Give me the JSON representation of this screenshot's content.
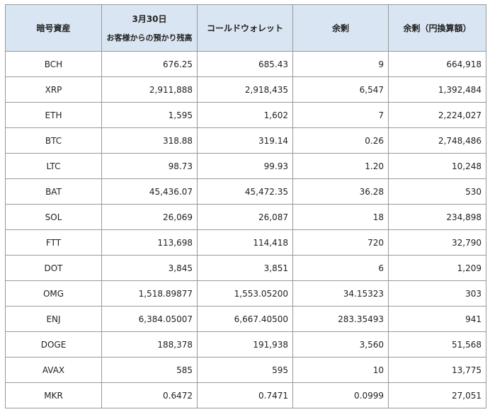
{
  "header": {
    "asset": "暗号資産",
    "customer_line1": "3月30日",
    "customer_line2": "お客様からの預かり残高",
    "cold_wallet": "コールドウォレット",
    "surplus": "余剰",
    "surplus_jpy": "余剰（円換算額）"
  },
  "rows": [
    {
      "asset": "BCH",
      "customer": "676.25",
      "cold": "685.43",
      "surplus": "9",
      "jpy": "664,918"
    },
    {
      "asset": "XRP",
      "customer": "2,911,888",
      "cold": "2,918,435",
      "surplus": "6,547",
      "jpy": "1,392,484"
    },
    {
      "asset": "ETH",
      "customer": "1,595",
      "cold": "1,602",
      "surplus": "7",
      "jpy": "2,224,027"
    },
    {
      "asset": "BTC",
      "customer": "318.88",
      "cold": "319.14",
      "surplus": "0.26",
      "jpy": "2,748,486"
    },
    {
      "asset": "LTC",
      "customer": "98.73",
      "cold": "99.93",
      "surplus": "1.20",
      "jpy": "10,248"
    },
    {
      "asset": "BAT",
      "customer": "45,436.07",
      "cold": "45,472.35",
      "surplus": "36.28",
      "jpy": "530"
    },
    {
      "asset": "SOL",
      "customer": "26,069",
      "cold": "26,087",
      "surplus": "18",
      "jpy": "234,898"
    },
    {
      "asset": "FTT",
      "customer": "113,698",
      "cold": "114,418",
      "surplus": "720",
      "jpy": "32,790"
    },
    {
      "asset": "DOT",
      "customer": "3,845",
      "cold": "3,851",
      "surplus": "6",
      "jpy": "1,209"
    },
    {
      "asset": "OMG",
      "customer": "1,518.89877",
      "cold": "1,553.05200",
      "surplus": "34.15323",
      "jpy": "303"
    },
    {
      "asset": "ENJ",
      "customer": "6,384.05007",
      "cold": "6,667.40500",
      "surplus": "283.35493",
      "jpy": "941"
    },
    {
      "asset": "DOGE",
      "customer": "188,378",
      "cold": "191,938",
      "surplus": "3,560",
      "jpy": "51,568"
    },
    {
      "asset": "AVAX",
      "customer": "585",
      "cold": "595",
      "surplus": "10",
      "jpy": "13,775"
    },
    {
      "asset": "MKR",
      "customer": "0.6472",
      "cold": "0.7471",
      "surplus": "0.0999",
      "jpy": "27,051"
    }
  ]
}
